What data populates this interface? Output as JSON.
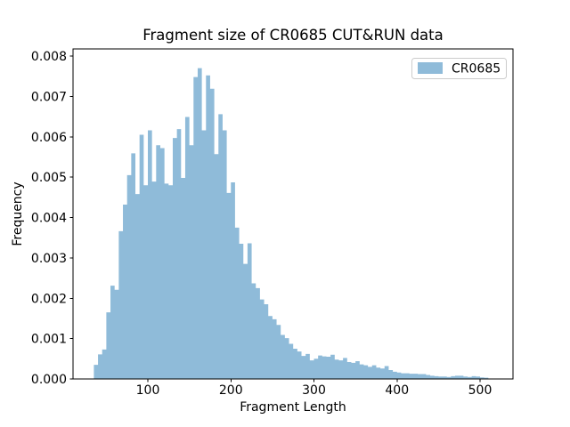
{
  "figure_title": "Fragment size of CR0685 CUT&RUN data",
  "chart_data": {
    "type": "bar",
    "variant": "histogram",
    "title": "Fragment size of CR0685 CUT&RUN data",
    "xlabel": "Fragment Length",
    "ylabel": "Frequency",
    "grid": false,
    "legend": {
      "position": "upper right",
      "entries": [
        "CR0685"
      ]
    },
    "bar_color": "#8fbbd9",
    "axis_color": "#000000",
    "legend_border_color": "#cccccc",
    "xlim": [
      10,
      540
    ],
    "ylim": [
      0,
      0.00818
    ],
    "x_ticks": [
      100,
      200,
      300,
      400,
      500
    ],
    "x_tick_labels": [
      "100",
      "200",
      "300",
      "400",
      "500"
    ],
    "y_ticks": [
      0,
      0.001,
      0.002,
      0.003,
      0.004,
      0.005,
      0.006,
      0.007,
      0.008
    ],
    "y_tick_labels": [
      "0.000",
      "0.001",
      "0.002",
      "0.003",
      "0.004",
      "0.005",
      "0.006",
      "0.007",
      "0.008"
    ],
    "bin_start": 35,
    "bin_width": 5,
    "frequencies": [
      0.00035,
      0.00061,
      0.00073,
      0.00165,
      0.00231,
      0.00221,
      0.00366,
      0.00432,
      0.00505,
      0.00559,
      0.00458,
      0.00605,
      0.0048,
      0.00616,
      0.00489,
      0.00579,
      0.00572,
      0.00484,
      0.0048,
      0.00597,
      0.00619,
      0.00498,
      0.00649,
      0.00579,
      0.00748,
      0.0077,
      0.00616,
      0.00752,
      0.00719,
      0.00557,
      0.00656,
      0.00616,
      0.00461,
      0.00487,
      0.00375,
      0.00335,
      0.00285,
      0.00336,
      0.00237,
      0.00225,
      0.00197,
      0.00185,
      0.00156,
      0.00148,
      0.00134,
      0.00109,
      0.00101,
      0.00087,
      0.00075,
      0.00068,
      0.00057,
      0.00062,
      0.00046,
      0.0005,
      0.00058,
      0.00056,
      0.00055,
      0.0006,
      0.00048,
      0.00046,
      0.00052,
      0.00042,
      0.0004,
      0.00044,
      0.00036,
      0.00034,
      0.0003,
      0.00034,
      0.00028,
      0.00026,
      0.00032,
      0.00022,
      0.00018,
      0.00016,
      0.00014,
      0.00014,
      0.00013,
      0.00013,
      0.00012,
      0.00012,
      0.0001,
      8e-05,
      7e-05,
      6e-05,
      6e-05,
      5e-05,
      7e-05,
      8e-05,
      8e-05,
      6e-05,
      5e-05,
      7e-05,
      6e-05,
      4e-05,
      3e-05
    ]
  }
}
